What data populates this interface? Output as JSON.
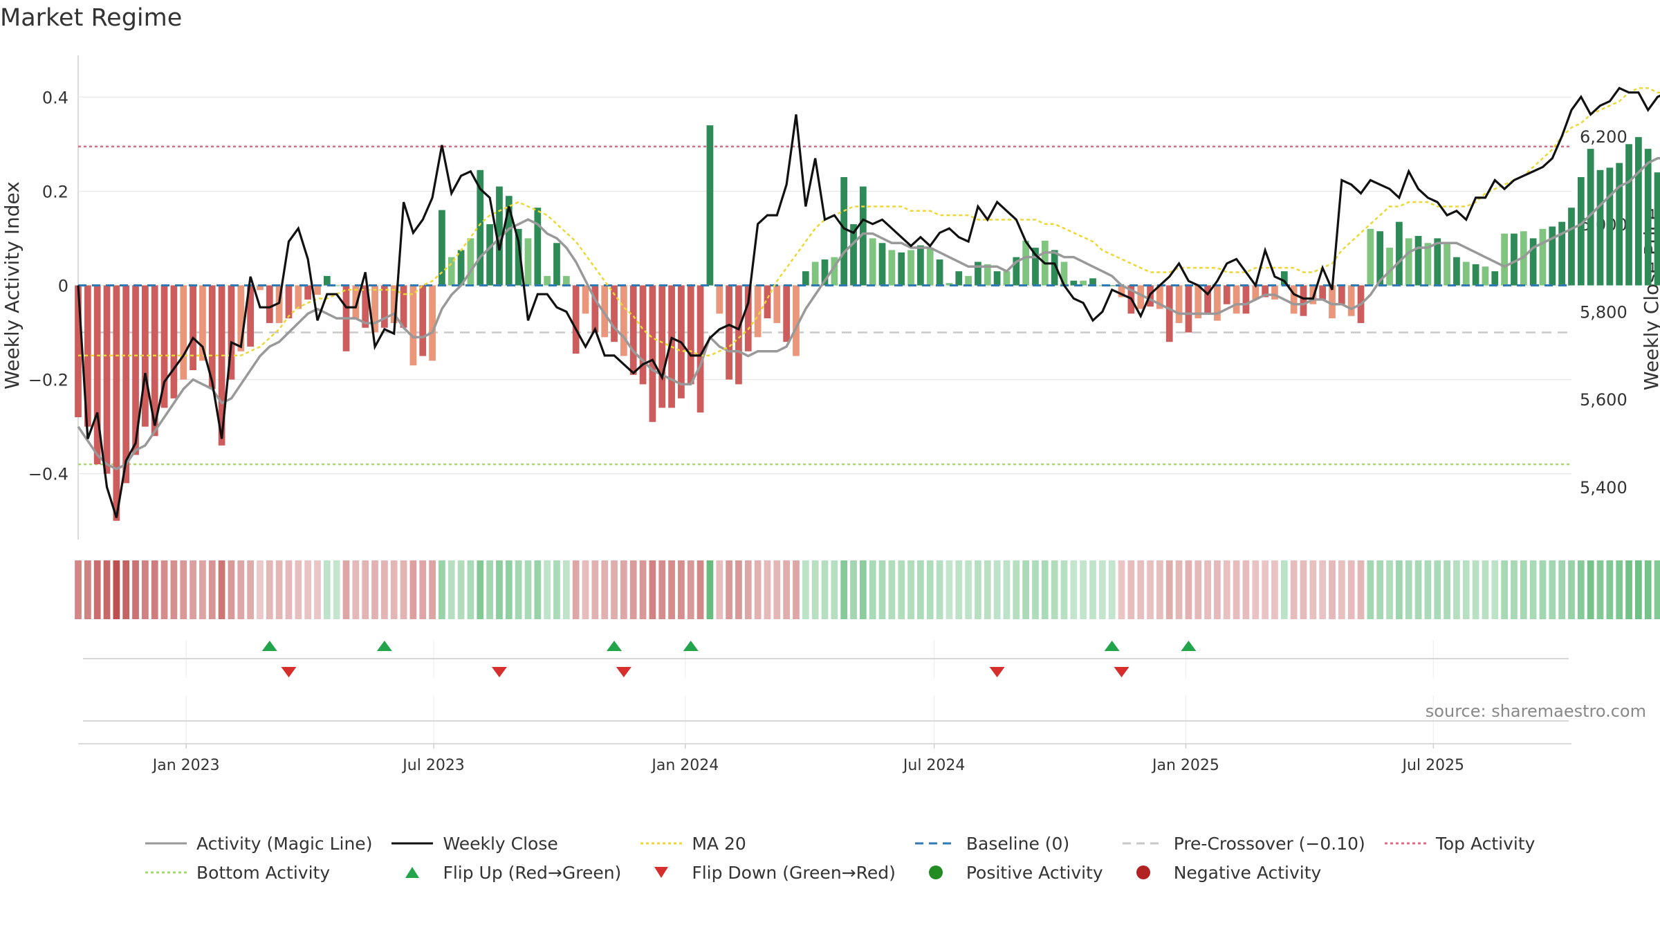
{
  "title": "Market Regime",
  "source": "source: sharemaestro.com",
  "colors": {
    "activity_line": "#999999",
    "close_line": "#111111",
    "ma20": "#ecd834",
    "baseline": "#2f7ab5",
    "pre_crossover": "#c8c8c8",
    "top_activity": "#e06a82",
    "bottom_activity": "#a7d86b",
    "pos_strong": "#2e8b57",
    "pos_weak": "#7fc47f",
    "neg_strong": "#cd5c5c",
    "neg_weak": "#e9967a",
    "flip_up": "#22a54a",
    "flip_down": "#d62d2d",
    "positive_dot": "#228b22",
    "negative_dot": "#b22222"
  },
  "legend": [
    {
      "label": "Activity (Magic Line)",
      "kind": "line",
      "color": "#999999",
      "dash": ""
    },
    {
      "label": "Weekly Close",
      "kind": "line",
      "color": "#111111",
      "dash": ""
    },
    {
      "label": "MA 20",
      "kind": "line",
      "color": "#ecd834",
      "dash": "4,4"
    },
    {
      "label": "Baseline (0)",
      "kind": "line",
      "color": "#2f7ab5",
      "dash": "12,8"
    },
    {
      "label": "Pre-Crossover (−0.10)",
      "kind": "line",
      "color": "#c8c8c8",
      "dash": "12,8"
    },
    {
      "label": "Top Activity",
      "kind": "line",
      "color": "#e06a82",
      "dash": "4,4"
    },
    {
      "label": "Bottom Activity",
      "kind": "line",
      "color": "#a7d86b",
      "dash": "4,4"
    },
    {
      "label": "Flip Up (Red→Green)",
      "kind": "tri-up",
      "color": "#22a54a"
    },
    {
      "label": "Flip Down (Green→Red)",
      "kind": "tri-down",
      "color": "#d62d2d"
    },
    {
      "label": "Positive Activity",
      "kind": "dot",
      "color": "#228b22"
    },
    {
      "label": "Negative Activity",
      "kind": "dot",
      "color": "#b22222"
    }
  ],
  "chart_data": {
    "type": "bar",
    "title": "Market Regime",
    "ylabel": "Weekly Activity Index",
    "y2label": "Weekly Close Price",
    "ylim": [
      -0.54,
      0.54
    ],
    "y2lim": [
      5280,
      6440
    ],
    "yticks": [
      {
        "value": 0.4,
        "label": "0.4"
      },
      {
        "value": 0.2,
        "label": "0.2"
      },
      {
        "value": 0,
        "label": "0"
      },
      {
        "value": -0.2,
        "label": "−0.2"
      },
      {
        "value": -0.4,
        "label": "−0.4"
      }
    ],
    "y2ticks": [
      {
        "value": 6200,
        "label": "6,200"
      },
      {
        "value": 6000,
        "label": "6,000"
      },
      {
        "value": 5800,
        "label": "5,800"
      },
      {
        "value": 5600,
        "label": "5,600"
      },
      {
        "value": 5400,
        "label": "5,400"
      }
    ],
    "xlim": [
      "2022-10-14",
      "2025-10-10"
    ],
    "xticks": [
      {
        "date": "2023-01-01",
        "label": "Jan 2023"
      },
      {
        "date": "2023-07-01",
        "label": "Jul 2023"
      },
      {
        "date": "2024-01-01",
        "label": "Jan 2024"
      },
      {
        "date": "2024-07-01",
        "label": "Jul 2024"
      },
      {
        "date": "2025-01-01",
        "label": "Jan 2025"
      },
      {
        "date": "2025-07-01",
        "label": "Jul 2025"
      }
    ],
    "first_week": "2022-10-14",
    "reference_lines": {
      "top_activity": 0.295,
      "bottom_activity": -0.38,
      "pre_crossover": -0.1,
      "baseline": 0
    },
    "activity": [
      -0.28,
      -0.3,
      -0.38,
      -0.4,
      -0.5,
      -0.42,
      -0.36,
      -0.3,
      -0.32,
      -0.26,
      -0.24,
      -0.2,
      -0.18,
      -0.16,
      -0.22,
      -0.34,
      -0.2,
      -0.14,
      -0.13,
      -0.01,
      -0.08,
      -0.08,
      -0.07,
      -0.05,
      -0.03,
      -0.02,
      0.02,
      0.0,
      -0.14,
      -0.07,
      -0.09,
      -0.1,
      -0.09,
      -0.08,
      -0.09,
      -0.17,
      -0.15,
      -0.16,
      0.16,
      0.06,
      0.075,
      0.1,
      0.245,
      0.13,
      0.21,
      0.19,
      0.12,
      0.1,
      0.165,
      0.02,
      0.09,
      0.02,
      -0.145,
      -0.06,
      -0.1,
      -0.11,
      -0.12,
      -0.15,
      -0.19,
      -0.21,
      -0.29,
      -0.26,
      -0.26,
      -0.24,
      -0.21,
      -0.27,
      0.34,
      -0.06,
      -0.2,
      -0.21,
      -0.14,
      -0.11,
      -0.07,
      -0.08,
      -0.12,
      -0.15,
      0.03,
      0.05,
      0.055,
      0.06,
      0.23,
      0.13,
      0.21,
      0.1,
      0.09,
      0.075,
      0.07,
      0.075,
      0.085,
      0.08,
      0.055,
      0.005,
      0.03,
      0.02,
      0.05,
      0.045,
      0.03,
      0.03,
      0.06,
      0.095,
      0.08,
      0.095,
      0.075,
      0.05,
      0.01,
      0.01,
      0.015,
      0.0,
      0.0,
      -0.025,
      -0.06,
      -0.05,
      -0.045,
      -0.05,
      -0.12,
      -0.08,
      -0.1,
      -0.07,
      -0.06,
      -0.075,
      -0.04,
      -0.06,
      -0.06,
      -0.03,
      -0.025,
      -0.03,
      0.03,
      -0.06,
      -0.065,
      -0.04,
      -0.03,
      -0.07,
      -0.04,
      -0.065,
      -0.08,
      0.12,
      0.115,
      0.08,
      0.135,
      0.1,
      0.105,
      0.09,
      0.1,
      0.09,
      0.06,
      0.05,
      0.045,
      0.04,
      0.03,
      0.11,
      0.11,
      0.115,
      0.1,
      0.12,
      0.125,
      0.135,
      0.165,
      0.23,
      0.29,
      0.245,
      0.25,
      0.26,
      0.3,
      0.315,
      0.29,
      0.24,
      0.27,
      0.265,
      0.25,
      0.255,
      0.23,
      0.17,
      0.19
    ],
    "magic_line": [
      -0.3,
      -0.33,
      -0.36,
      -0.38,
      -0.39,
      -0.38,
      -0.35,
      -0.34,
      -0.31,
      -0.28,
      -0.25,
      -0.22,
      -0.2,
      -0.21,
      -0.22,
      -0.25,
      -0.24,
      -0.21,
      -0.18,
      -0.15,
      -0.13,
      -0.12,
      -0.1,
      -0.08,
      -0.06,
      -0.05,
      -0.06,
      -0.07,
      -0.07,
      -0.07,
      -0.08,
      -0.08,
      -0.07,
      -0.06,
      -0.09,
      -0.11,
      -0.11,
      -0.1,
      -0.05,
      -0.02,
      0.0,
      0.03,
      0.06,
      0.08,
      0.1,
      0.12,
      0.13,
      0.14,
      0.13,
      0.11,
      0.1,
      0.08,
      0.05,
      0.01,
      -0.03,
      -0.06,
      -0.09,
      -0.11,
      -0.14,
      -0.16,
      -0.18,
      -0.19,
      -0.2,
      -0.21,
      -0.21,
      -0.17,
      -0.11,
      -0.13,
      -0.14,
      -0.14,
      -0.15,
      -0.14,
      -0.14,
      -0.14,
      -0.13,
      -0.09,
      -0.05,
      -0.02,
      0.01,
      0.04,
      0.07,
      0.09,
      0.11,
      0.11,
      0.1,
      0.09,
      0.09,
      0.08,
      0.08,
      0.08,
      0.07,
      0.06,
      0.05,
      0.04,
      0.04,
      0.04,
      0.04,
      0.03,
      0.05,
      0.06,
      0.06,
      0.07,
      0.07,
      0.06,
      0.06,
      0.05,
      0.04,
      0.03,
      0.02,
      0.0,
      -0.01,
      -0.02,
      -0.03,
      -0.04,
      -0.05,
      -0.06,
      -0.06,
      -0.06,
      -0.06,
      -0.06,
      -0.05,
      -0.04,
      -0.04,
      -0.03,
      -0.02,
      -0.02,
      -0.03,
      -0.04,
      -0.04,
      -0.03,
      -0.03,
      -0.04,
      -0.04,
      -0.05,
      -0.04,
      -0.02,
      0.01,
      0.03,
      0.05,
      0.07,
      0.08,
      0.08,
      0.09,
      0.09,
      0.09,
      0.08,
      0.07,
      0.06,
      0.05,
      0.04,
      0.05,
      0.06,
      0.08,
      0.09,
      0.1,
      0.11,
      0.12,
      0.13,
      0.15,
      0.17,
      0.19,
      0.21,
      0.22,
      0.24,
      0.26,
      0.27,
      0.27,
      0.27,
      0.27,
      0.26,
      0.26,
      0.25,
      0.23,
      0.22
    ],
    "weekly_close": [
      5860,
      5510,
      5570,
      5400,
      5330,
      5460,
      5500,
      5660,
      5540,
      5640,
      5670,
      5700,
      5740,
      5720,
      5640,
      5510,
      5730,
      5720,
      5880,
      5810,
      5810,
      5820,
      5960,
      5990,
      5920,
      5780,
      5840,
      5840,
      5810,
      5810,
      5890,
      5720,
      5760,
      5750,
      6050,
      5980,
      6010,
      6060,
      6180,
      6070,
      6110,
      6120,
      6080,
      6060,
      5940,
      6040,
      5960,
      5780,
      5840,
      5840,
      5810,
      5800,
      5760,
      5720,
      5760,
      5700,
      5700,
      5680,
      5660,
      5680,
      5690,
      5650,
      5740,
      5730,
      5700,
      5700,
      5740,
      5760,
      5770,
      5760,
      5820,
      6000,
      6020,
      6020,
      6090,
      6250,
      6040,
      6150,
      6010,
      6020,
      5990,
      5980,
      6010,
      6000,
      6010,
      5990,
      5970,
      5950,
      5970,
      5950,
      5980,
      5990,
      5970,
      5960,
      6040,
      6010,
      6050,
      6030,
      6010,
      5960,
      5930,
      5910,
      5910,
      5860,
      5830,
      5820,
      5780,
      5800,
      5850,
      5840,
      5830,
      5790,
      5840,
      5860,
      5880,
      5910,
      5870,
      5860,
      5840,
      5870,
      5910,
      5920,
      5890,
      5860,
      5940,
      5880,
      5870,
      5840,
      5830,
      5830,
      5900,
      5850,
      6100,
      6090,
      6070,
      6100,
      6090,
      6080,
      6060,
      6120,
      6080,
      6060,
      6050,
      6020,
      6030,
      6010,
      6060,
      6060,
      6100,
      6080,
      6100,
      6110,
      6120,
      6130,
      6150,
      6200,
      6260,
      6290,
      6250,
      6270,
      6280,
      6310,
      6300,
      6300,
      6260,
      6290,
      6300,
      6270,
      6230,
      6190,
      6200
    ],
    "ma20": [
      5700,
      5700,
      5700,
      5700,
      5700,
      5700,
      5700,
      5700,
      5700,
      5700,
      5700,
      5700,
      5700,
      5700,
      5700,
      5700,
      5700,
      5700,
      5710,
      5720,
      5740,
      5760,
      5790,
      5810,
      5820,
      5830,
      5830,
      5840,
      5850,
      5850,
      5850,
      5850,
      5850,
      5850,
      5840,
      5840,
      5860,
      5870,
      5890,
      5910,
      5940,
      5970,
      6000,
      6020,
      6030,
      6040,
      6050,
      6040,
      6030,
      6020,
      6000,
      5980,
      5960,
      5930,
      5900,
      5870,
      5840,
      5810,
      5790,
      5760,
      5740,
      5730,
      5720,
      5710,
      5710,
      5700,
      5700,
      5710,
      5720,
      5740,
      5760,
      5790,
      5830,
      5870,
      5900,
      5930,
      5960,
      5990,
      6010,
      6020,
      6030,
      6040,
      6040,
      6040,
      6040,
      6040,
      6040,
      6030,
      6030,
      6030,
      6020,
      6020,
      6020,
      6020,
      6010,
      6010,
      6010,
      6010,
      6010,
      6010,
      6010,
      6000,
      6000,
      5990,
      5980,
      5970,
      5960,
      5940,
      5930,
      5920,
      5910,
      5900,
      5890,
      5890,
      5890,
      5900,
      5900,
      5900,
      5900,
      5900,
      5890,
      5890,
      5890,
      5900,
      5900,
      5900,
      5900,
      5900,
      5890,
      5890,
      5900,
      5910,
      5940,
      5960,
      5980,
      6000,
      6020,
      6040,
      6040,
      6050,
      6050,
      6050,
      6040,
      6040,
      6040,
      6040,
      6050,
      6070,
      6080,
      6090,
      6100,
      6110,
      6130,
      6150,
      6170,
      6200,
      6220,
      6230,
      6250,
      6260,
      6270,
      6280,
      6300,
      6310,
      6310,
      6300,
      6300,
      6290
    ],
    "flip_up_dates": [
      "2023-03-03",
      "2023-05-26",
      "2023-11-10",
      "2024-01-05",
      "2024-11-08",
      "2025-01-03"
    ],
    "flip_down_dates": [
      "2023-03-17",
      "2023-08-18",
      "2023-11-17",
      "2024-08-16",
      "2024-11-15"
    ]
  }
}
